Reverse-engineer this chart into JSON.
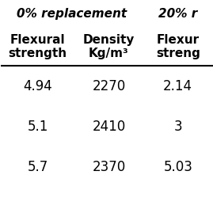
{
  "header_row1_left": "0% replacement",
  "header_row1_right": "20% r",
  "header_row2": [
    "Flexural\nstrength",
    "Density\nKg/m³",
    "Flexur\nstreng"
  ],
  "rows": [
    [
      "4.94",
      "2270",
      "2.14"
    ],
    [
      "5.1",
      "2410",
      "3"
    ],
    [
      "5.7",
      "2370",
      "5.03"
    ]
  ],
  "background_color": "#ffffff",
  "text_color": "#000000",
  "font_size": 11,
  "data_font_size": 12
}
